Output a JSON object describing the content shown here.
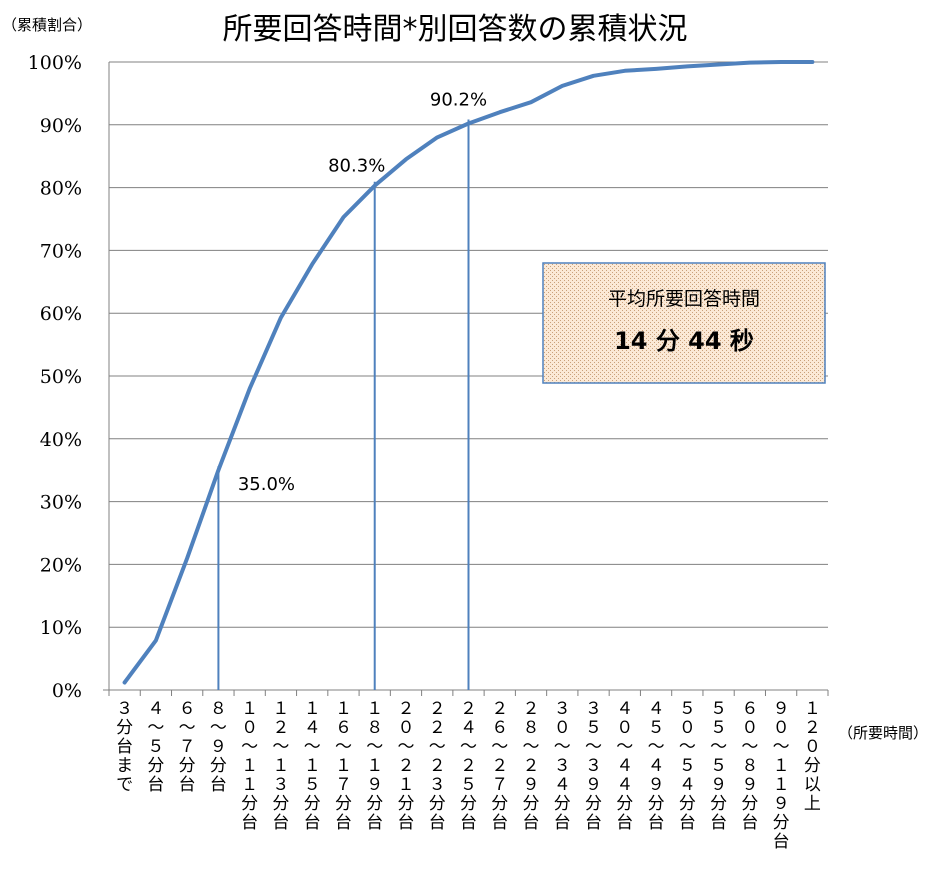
{
  "chart_data": {
    "type": "line",
    "title": "所要回答時間*別回答数の累積状況",
    "ylabel": "（累積割合）",
    "xlabel": "（所要時間）",
    "ylim": [
      0,
      100
    ],
    "ytick_labels": [
      "0%",
      "10%",
      "20%",
      "30%",
      "40%",
      "50%",
      "60%",
      "70%",
      "80%",
      "90%",
      "100%"
    ],
    "grid": true,
    "categories": [
      "3分台まで",
      "4～5分台",
      "6～7分台",
      "8～9分台",
      "10～11分台",
      "12～13分台",
      "14～15分台",
      "16～17分台",
      "18～19分台",
      "20～21分台",
      "22～23分台",
      "24～25分台",
      "26～27分台",
      "28～29分台",
      "30～34分台",
      "35～39分台",
      "40～44分台",
      "45～49分台",
      "50～54分台",
      "55～59分台",
      "60～89分台",
      "90～119分台",
      "120分以上"
    ],
    "series": [
      {
        "values": [
          1.2,
          7.9,
          21.0,
          35.0,
          48.0,
          59.3,
          67.8,
          75.3,
          80.3,
          84.5,
          88.0,
          90.2,
          92.0,
          93.6,
          96.2,
          97.8,
          98.6,
          98.9,
          99.3,
          99.6,
          99.9,
          100.0,
          100.0
        ]
      }
    ],
    "color": "#4f81bd",
    "grid_color": "#808080",
    "annotations": [
      {
        "label": "35.0%",
        "value": 35.0,
        "x": "8～9分台"
      },
      {
        "label": "80.3%",
        "value": 80.3,
        "x": "18～19分台"
      },
      {
        "label": "90.2%",
        "value": 90.2,
        "x": "24～25分台"
      }
    ],
    "info_box": {
      "label": "平均所要回答時間",
      "value": "14 分 44 秒"
    }
  }
}
